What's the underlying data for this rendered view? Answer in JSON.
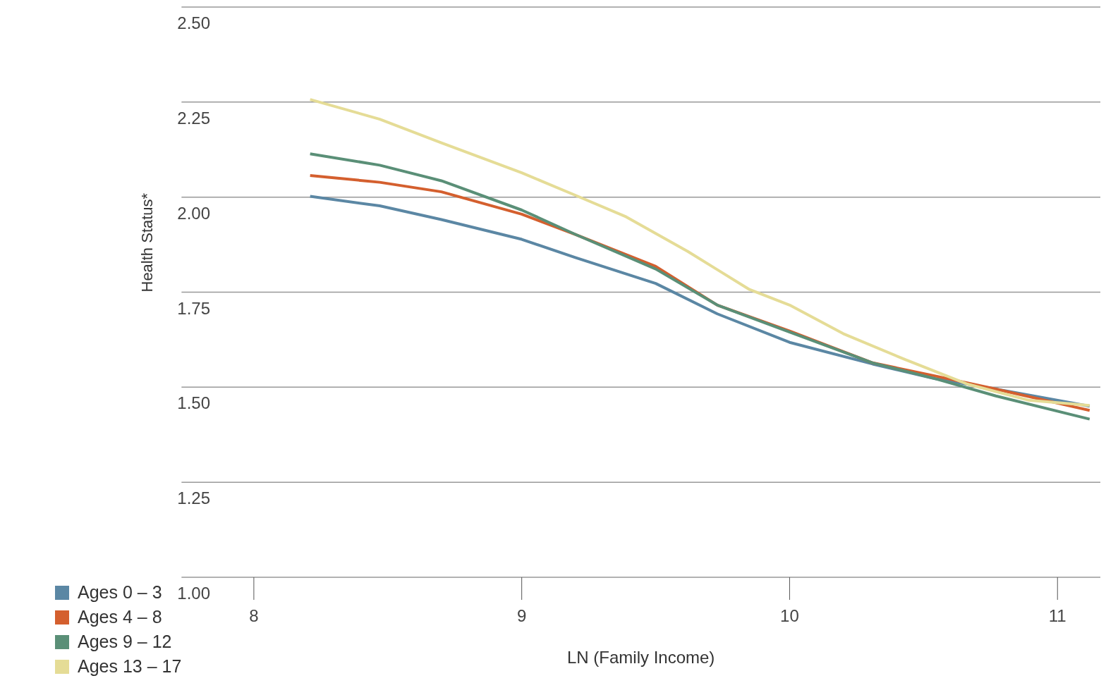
{
  "chart_data": {
    "type": "line",
    "xlabel": "LN (Family Income)",
    "ylabel": "Health Status*",
    "xlim": [
      7.73,
      11.16
    ],
    "xticks": [
      8,
      9,
      10,
      11
    ],
    "ylim": [
      1.0,
      2.5
    ],
    "yticks": [
      {
        "value": 1.0,
        "label": "1.00"
      },
      {
        "value": 1.25,
        "label": "1.25"
      },
      {
        "value": 1.5,
        "label": "1.50"
      },
      {
        "value": 1.75,
        "label": "1.75"
      },
      {
        "value": 2.0,
        "label": "2.00"
      },
      {
        "value": 2.25,
        "label": "2.25"
      },
      {
        "value": 2.5,
        "label": "2.50"
      }
    ],
    "grid": "y",
    "legend": "bottom left",
    "marker": "none",
    "line_style": "solid",
    "series": [
      {
        "name": "Ages 0 – 3",
        "color": "#5b87a4",
        "x": [
          8.21,
          8.47,
          8.7,
          9.0,
          9.2,
          9.5,
          9.73,
          10.0,
          10.31,
          10.54,
          10.77,
          11.12
        ],
        "values": [
          2.002,
          1.977,
          1.941,
          1.889,
          1.841,
          1.773,
          1.693,
          1.618,
          1.561,
          1.523,
          1.495,
          1.45
        ]
      },
      {
        "name": "Ages 4 – 8",
        "color": "#d45f2e",
        "x": [
          8.21,
          8.47,
          8.7,
          9.0,
          9.2,
          9.5,
          9.73,
          10.0,
          10.31,
          10.54,
          10.77,
          11.12
        ],
        "values": [
          2.057,
          2.039,
          2.014,
          1.955,
          1.902,
          1.818,
          1.716,
          1.648,
          1.564,
          1.53,
          1.495,
          1.439
        ]
      },
      {
        "name": "Ages 9 – 12",
        "color": "#5a8f77",
        "x": [
          8.21,
          8.47,
          8.7,
          9.0,
          9.2,
          9.5,
          9.73,
          10.0,
          10.31,
          10.54,
          10.77,
          11.12
        ],
        "values": [
          2.114,
          2.084,
          2.043,
          1.966,
          1.902,
          1.811,
          1.716,
          1.645,
          1.564,
          1.523,
          1.477,
          1.416
        ]
      },
      {
        "name": "Ages 13 – 17",
        "color": "#e5dc96",
        "x": [
          8.21,
          8.47,
          8.7,
          9.0,
          9.2,
          9.39,
          9.62,
          9.85,
          10.0,
          10.2,
          10.43,
          10.66,
          10.89,
          11.12
        ],
        "values": [
          2.257,
          2.205,
          2.143,
          2.064,
          2.005,
          1.948,
          1.857,
          1.757,
          1.716,
          1.641,
          1.573,
          1.509,
          1.466,
          1.452
        ]
      }
    ]
  }
}
